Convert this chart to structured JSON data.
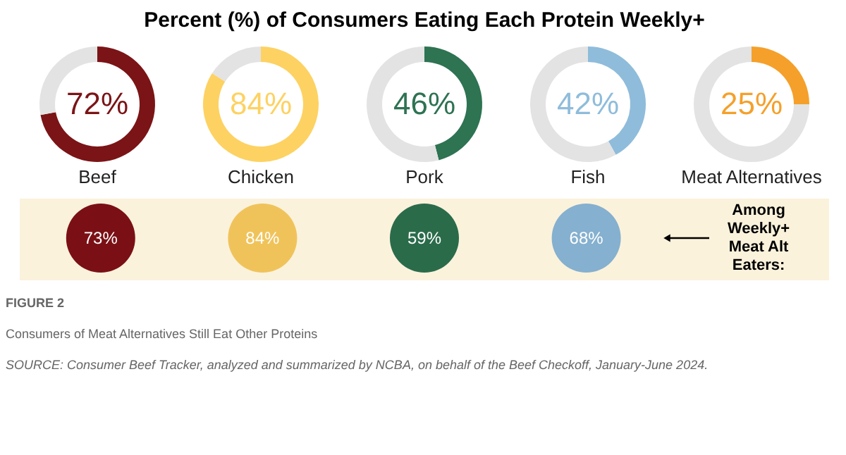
{
  "chart_data": [
    {
      "type": "other",
      "title": "Percent (%) of Consumers Eating Each Protein Weekly+"
    },
    {
      "type": "donut",
      "title": "Beef",
      "categories": [
        null,
        null
      ],
      "values": [
        72,
        28
      ],
      "colors": [
        "#7b1416",
        "#e3e3e3"
      ],
      "value_labels": [
        "72%",
        null
      ]
    },
    {
      "type": "donut",
      "title": "Chicken",
      "categories": [
        null,
        null
      ],
      "values": [
        84,
        16
      ],
      "colors": [
        "#fdd262",
        "#e3e3e3"
      ],
      "value_labels": [
        "84%",
        null
      ]
    },
    {
      "type": "donut",
      "title": "Pork",
      "categories": [
        null,
        null
      ],
      "values": [
        46,
        54
      ],
      "colors": [
        "#2e7352",
        "#e3e3e3"
      ],
      "value_labels": [
        "46%",
        null
      ]
    },
    {
      "type": "donut",
      "title": "Fish",
      "categories": [
        null,
        null
      ],
      "values": [
        42,
        58
      ],
      "colors": [
        "#8fbcdb",
        "#e3e3e3"
      ],
      "value_labels": [
        "42%",
        null
      ]
    },
    {
      "type": "donut",
      "title": "Meat Alternatives",
      "categories": [
        null,
        null
      ],
      "values": [
        25,
        75
      ],
      "colors": [
        "#f5a02a",
        "#e3e3e3"
      ],
      "value_labels": [
        "25%",
        null
      ]
    },
    {
      "type": "other",
      "categories": [
        null,
        null,
        null,
        null
      ],
      "values": [
        73,
        84,
        59,
        68
      ],
      "colors": [
        "#7a1015",
        "#f0c35a",
        "#2a6b4a",
        "#85b0cf"
      ],
      "value_labels": [
        "73%",
        "84%",
        "59%",
        "68%"
      ],
      "annotations": [
        "Among Weekly+ Meat Alt Eaters:",
        "FIGURE 2",
        "Consumers of Meat Alternatives Still Eat Other Proteins",
        "SOURCE: Consumer Beef Tracker, analyzed and summarized by NCBA, on behalf of the Beef Checkoff, January-June 2024."
      ]
    }
  ]
}
